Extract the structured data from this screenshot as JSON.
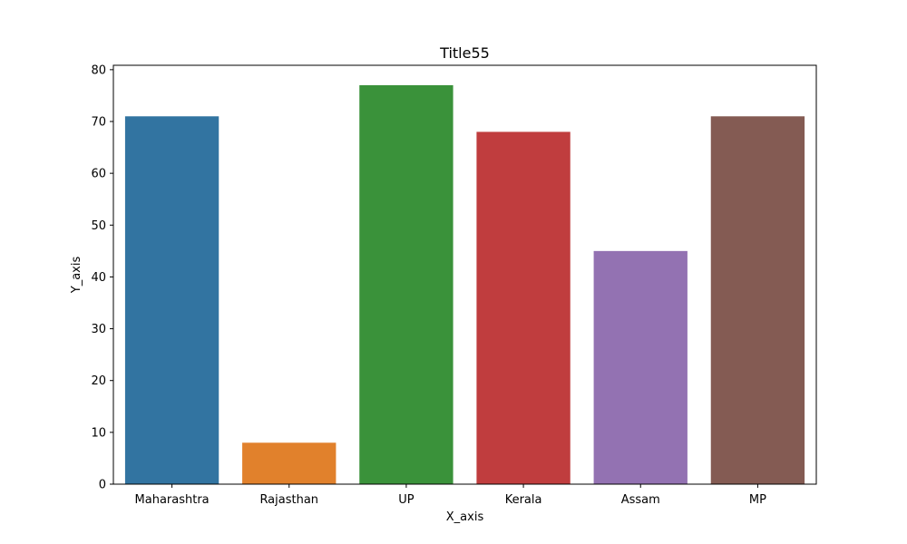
{
  "chart_data": {
    "type": "bar",
    "title": "Title55",
    "xlabel": "X_axis",
    "ylabel": "Y_axis",
    "categories": [
      "Maharashtra",
      "Rajasthan",
      "UP",
      "Kerala",
      "Assam",
      "MP"
    ],
    "values": [
      71,
      8,
      77,
      68,
      45,
      71
    ],
    "colors": [
      "#3274a1",
      "#e1812c",
      "#3a923a",
      "#c03d3e",
      "#9372b2",
      "#845b53"
    ],
    "ylim": [
      0,
      80.85
    ],
    "yticks": [
      0,
      10,
      20,
      30,
      40,
      50,
      60,
      70,
      80
    ],
    "grid": false,
    "legend": "none"
  }
}
